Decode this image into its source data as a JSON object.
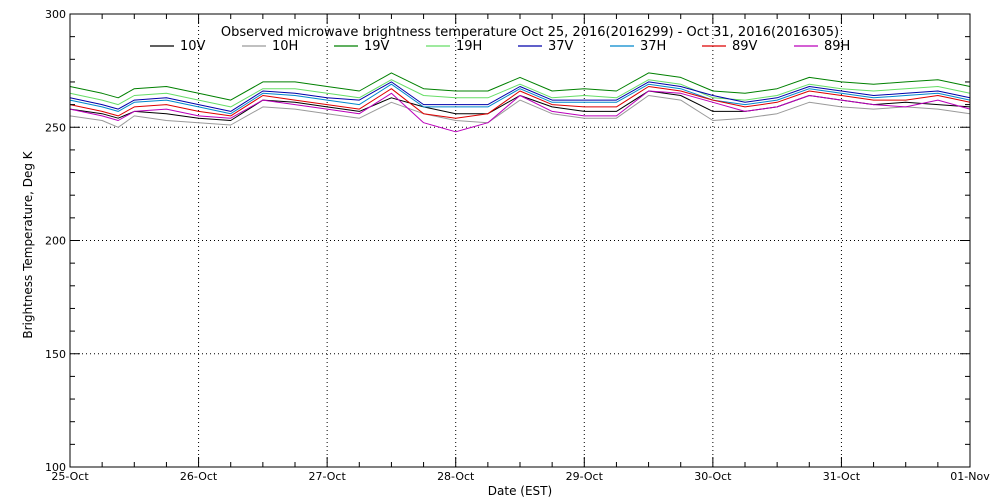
{
  "chart_data": {
    "type": "line",
    "title": "Observed microwave brightness temperature Oct 25, 2016(2016299) - Oct 31, 2016(2016305)",
    "xlabel": "Date (EST)",
    "ylabel": "Brightness Temperature, Deg K",
    "ylim": [
      100,
      300
    ],
    "xlim": [
      "2016-10-25",
      "2016-11-01"
    ],
    "grid": true,
    "legend_position": "top",
    "x_ticks": [
      "25-Oct",
      "26-Oct",
      "27-Oct",
      "28-Oct",
      "29-Oct",
      "30-Oct",
      "31-Oct",
      "01-Nov"
    ],
    "y_ticks": [
      100,
      150,
      200,
      250,
      300
    ],
    "x": [
      "25-Oct 00:00",
      "25-Oct 06:00",
      "25-Oct 09:00",
      "25-Oct 12:00",
      "25-Oct 18:00",
      "26-Oct 00:00",
      "26-Oct 06:00",
      "26-Oct 12:00",
      "26-Oct 18:00",
      "27-Oct 00:00",
      "27-Oct 06:00",
      "27-Oct 12:00",
      "27-Oct 18:00",
      "28-Oct 00:00",
      "28-Oct 06:00",
      "28-Oct 12:00",
      "28-Oct 18:00",
      "29-Oct 00:00",
      "29-Oct 06:00",
      "29-Oct 12:00",
      "29-Oct 18:00",
      "30-Oct 00:00",
      "30-Oct 06:00",
      "30-Oct 12:00",
      "30-Oct 18:00",
      "31-Oct 00:00",
      "31-Oct 06:00",
      "31-Oct 12:00",
      "31-Oct 18:00",
      "01-Nov 00:00"
    ],
    "series": [
      {
        "name": "10V",
        "color": "#000000",
        "values": [
          258,
          256,
          254,
          257,
          256,
          254,
          253,
          262,
          261,
          259,
          257,
          263,
          259,
          256,
          256,
          264,
          259,
          257,
          257,
          266,
          264,
          257,
          257,
          259,
          264,
          262,
          260,
          261,
          260,
          259
        ]
      },
      {
        "name": "10H",
        "color": "#9a9a9a",
        "values": [
          255,
          253,
          250,
          255,
          253,
          252,
          251,
          259,
          258,
          256,
          254,
          261,
          256,
          253,
          252,
          262,
          256,
          254,
          254,
          264,
          262,
          253,
          254,
          256,
          261,
          259,
          258,
          259,
          258,
          256
        ]
      },
      {
        "name": "19V",
        "color": "#008000",
        "values": [
          268,
          265,
          263,
          267,
          268,
          265,
          262,
          270,
          270,
          268,
          266,
          274,
          267,
          266,
          266,
          272,
          266,
          267,
          266,
          274,
          272,
          266,
          265,
          267,
          272,
          270,
          269,
          270,
          271,
          268
        ]
      },
      {
        "name": "19H",
        "color": "#66dd66",
        "values": [
          265,
          262,
          260,
          264,
          265,
          262,
          259,
          267,
          267,
          265,
          263,
          271,
          264,
          263,
          263,
          269,
          263,
          264,
          263,
          271,
          269,
          263,
          262,
          264,
          269,
          267,
          266,
          267,
          268,
          265
        ]
      },
      {
        "name": "37V",
        "color": "#0000aa",
        "values": [
          263,
          260,
          258,
          262,
          263,
          260,
          257,
          266,
          265,
          263,
          262,
          270,
          260,
          260,
          260,
          268,
          262,
          262,
          262,
          270,
          268,
          264,
          261,
          263,
          268,
          266,
          264,
          265,
          266,
          263
        ]
      },
      {
        "name": "37H",
        "color": "#0088cc",
        "values": [
          262,
          259,
          257,
          261,
          262,
          259,
          256,
          265,
          264,
          262,
          260,
          269,
          259,
          259,
          259,
          267,
          261,
          261,
          261,
          269,
          267,
          262,
          260,
          262,
          267,
          265,
          263,
          264,
          265,
          262
        ]
      },
      {
        "name": "89V",
        "color": "#dd0000",
        "values": [
          260,
          257,
          255,
          259,
          260,
          257,
          255,
          264,
          262,
          260,
          258,
          267,
          256,
          254,
          256,
          266,
          260,
          259,
          259,
          268,
          266,
          262,
          259,
          261,
          266,
          264,
          262,
          262,
          264,
          261
        ]
      },
      {
        "name": "89H",
        "color": "#bb00bb",
        "values": [
          258,
          255,
          253,
          257,
          258,
          255,
          254,
          262,
          260,
          258,
          256,
          265,
          252,
          248,
          252,
          264,
          257,
          255,
          255,
          266,
          265,
          261,
          257,
          259,
          264,
          262,
          260,
          259,
          262,
          258
        ]
      }
    ]
  }
}
